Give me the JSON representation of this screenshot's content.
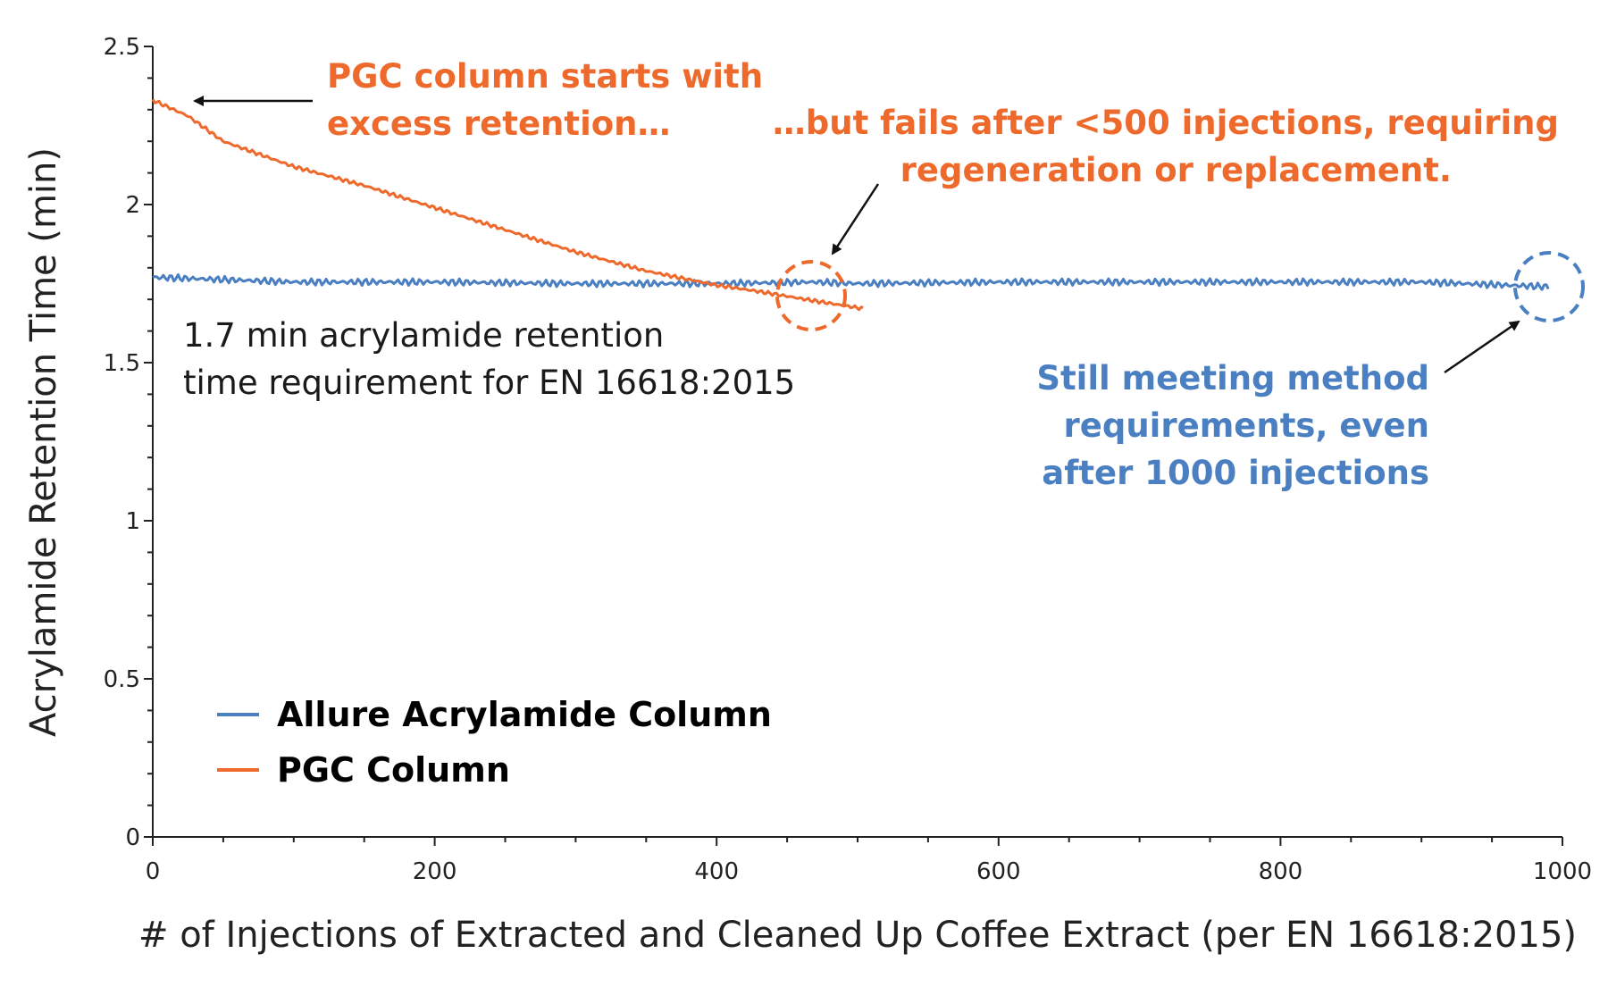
{
  "chart_data": {
    "type": "line",
    "title": "",
    "xlabel": "# of Injections of Extracted and Cleaned Up Coffee Extract (per EN 16618:2015)",
    "ylabel": "Acrylamide Retention Time (min)",
    "xlim": [
      0,
      1000
    ],
    "ylim": [
      0,
      2.5
    ],
    "xticks": [
      "0",
      "200",
      "400",
      "600",
      "800",
      "1000"
    ],
    "yticks": [
      "0",
      "0.5",
      "1",
      "1.5",
      "2",
      "2.5"
    ],
    "grid": false,
    "legend_position": "bottom-left",
    "series": [
      {
        "name": "Allure Acrylamide Column",
        "color": "#4a7fc1",
        "x": [
          0,
          100,
          200,
          300,
          400,
          470,
          500,
          600,
          700,
          800,
          900,
          990
        ],
        "y": [
          1.77,
          1.755,
          1.755,
          1.75,
          1.75,
          1.755,
          1.75,
          1.755,
          1.755,
          1.755,
          1.755,
          1.74
        ]
      },
      {
        "name": "PGC Column",
        "color": "#ee6a2c",
        "x": [
          0,
          25,
          50,
          100,
          150,
          200,
          250,
          300,
          350,
          400,
          430,
          470,
          505
        ],
        "y": [
          2.33,
          2.28,
          2.2,
          2.12,
          2.06,
          1.99,
          1.92,
          1.85,
          1.79,
          1.745,
          1.725,
          1.695,
          1.67
        ]
      }
    ],
    "annotations": {
      "pgc_start_line1": "PGC column starts with",
      "pgc_start_line2": "excess retention…",
      "pgc_fail_line1": "…but fails after <500 injections, requiring",
      "pgc_fail_line2": "regeneration or replacement.",
      "requirement_line1": "1.7 min acrylamide retention",
      "requirement_line2": "time requirement for EN 16618:2015",
      "allure_line1": "Still meeting method",
      "allure_line2": "requirements, even",
      "allure_line3": "after 1000 injections"
    }
  }
}
